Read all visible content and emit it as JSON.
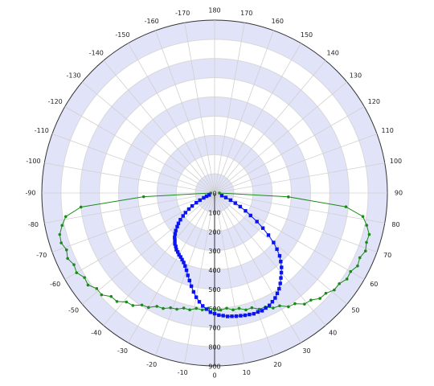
{
  "chart_data": {
    "type": "polar",
    "xlim": [
      -180,
      180
    ],
    "xticks": [
      -170,
      -160,
      -150,
      -140,
      -130,
      -120,
      -110,
      -100,
      -90,
      -80,
      -70,
      -60,
      -50,
      -40,
      -30,
      -20,
      -10,
      0,
      10,
      20,
      30,
      40,
      50,
      60,
      70,
      80,
      90,
      100,
      110,
      120,
      130,
      140,
      150,
      160,
      170,
      180
    ],
    "ylim": [
      0,
      900
    ],
    "yticks": [
      0,
      100,
      200,
      300,
      400,
      500,
      600,
      700,
      800,
      900
    ],
    "band_color": "#e1e3f8",
    "grid": true,
    "series": [
      {
        "color": "#1a8a1a",
        "theta": [
          -90,
          -87,
          -84,
          -81,
          -78,
          -75,
          -72,
          -69,
          -66,
          -63,
          -60,
          -57,
          -54,
          -51,
          -48,
          -45,
          -42,
          -39,
          -36,
          -33,
          -30,
          -27,
          -24,
          -21,
          -18,
          -15,
          -12,
          -9,
          -6,
          -3,
          0,
          3,
          6,
          9,
          12,
          15,
          18,
          21,
          24,
          27,
          30,
          33,
          36,
          39,
          42,
          45,
          48,
          51,
          54,
          57,
          60,
          63,
          66,
          69,
          72,
          75,
          78,
          81,
          84,
          87,
          90
        ],
        "values": [
          20,
          370,
          700,
          785,
          812,
          835,
          840,
          826,
          838,
          822,
          830,
          808,
          815,
          790,
          792,
          762,
          760,
          730,
          724,
          695,
          688,
          662,
          658,
          640,
          636,
          620,
          622,
          608,
          612,
          600,
          606,
          610,
          603,
          616,
          614,
          630,
          628,
          648,
          650,
          672,
          678,
          706,
          712,
          744,
          750,
          776,
          780,
          802,
          803,
          822,
          818,
          836,
          828,
          842,
          832,
          834,
          810,
          782,
          688,
          385,
          25
        ]
      },
      {
        "color": "#0a14f0",
        "theta": [
          -70,
          -68,
          -66,
          -64,
          -62,
          -60,
          -58,
          -56,
          -54,
          -52,
          -50,
          -48,
          -46,
          -44,
          -42,
          -40,
          -38,
          -36,
          -34,
          -32,
          -30,
          -28,
          -26,
          -24,
          -22,
          -20,
          -18,
          -16,
          -14,
          -12,
          -10,
          -8,
          -6,
          -4,
          -2,
          0,
          2,
          4,
          6,
          8,
          10,
          12,
          14,
          16,
          18,
          20,
          22,
          24,
          26,
          28,
          30,
          32,
          34,
          36,
          38,
          40,
          42,
          44,
          46,
          48,
          50,
          52,
          54,
          56,
          58,
          60,
          62,
          64,
          66,
          68,
          70
        ],
        "values": [
          30,
          45,
          62,
          85,
          108,
          135,
          158,
          183,
          203,
          226,
          246,
          262,
          281,
          296,
          311,
          322,
          336,
          344,
          356,
          362,
          371,
          377,
          386,
          396,
          410,
          428,
          451,
          474,
          500,
          526,
          551,
          572,
          591,
          606,
          621,
          628,
          636,
          640,
          646,
          648,
          651,
          653,
          656,
          658,
          661,
          659,
          661,
          655,
          651,
          641,
          631,
          616,
          601,
          582,
          561,
          541,
          521,
          496,
          471,
          437,
          401,
          356,
          311,
          266,
          221,
          186,
          151,
          120,
          91,
          63,
          40
        ]
      }
    ]
  }
}
